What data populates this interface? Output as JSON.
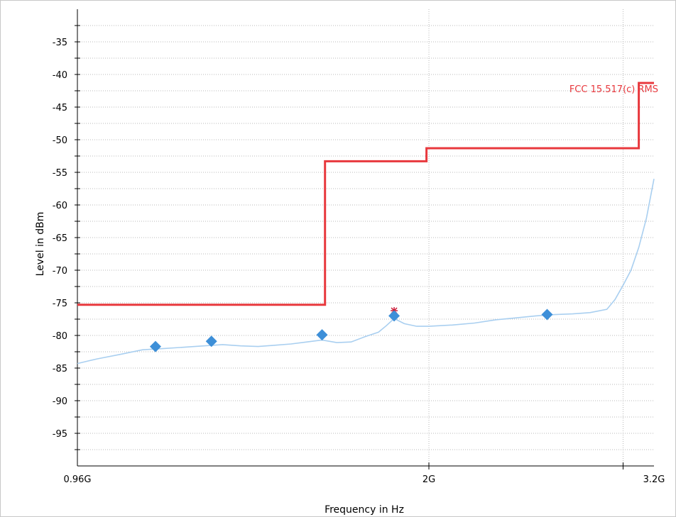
{
  "chart_data": {
    "type": "line",
    "xlabel": "Frequency in Hz",
    "ylabel": "Level in dBm",
    "x_scale": "log",
    "xlim": [
      960000000,
      3200000000
    ],
    "ylim": [
      -100,
      -30
    ],
    "grid": true,
    "x_ticks": [
      {
        "value": 960000000,
        "label": "0.96G"
      },
      {
        "value": 2000000000,
        "label": "2G"
      },
      {
        "value": 3200000000,
        "label": "3.2G"
      }
    ],
    "y_ticks": [
      {
        "value": -35,
        "label": "-35"
      },
      {
        "value": -40,
        "label": "-40"
      },
      {
        "value": -45,
        "label": "-45"
      },
      {
        "value": -50,
        "label": "-50"
      },
      {
        "value": -55,
        "label": "-55"
      },
      {
        "value": -60,
        "label": "-60"
      },
      {
        "value": -65,
        "label": "-65"
      },
      {
        "value": -70,
        "label": "-70"
      },
      {
        "value": -75,
        "label": "-75"
      },
      {
        "value": -80,
        "label": "-80"
      },
      {
        "value": -85,
        "label": "-85"
      },
      {
        "value": -90,
        "label": "-90"
      },
      {
        "value": -95,
        "label": "-95"
      }
    ],
    "series": [
      {
        "name": "FCC 15.517(c) RMS",
        "color": "#e8383d",
        "kind": "limit",
        "x": [
          960000000,
          1610000000,
          1610000000,
          1990000000,
          1990000000,
          3100000000,
          3100000000,
          3200000000
        ],
        "y": [
          -75.3,
          -75.3,
          -53.3,
          -53.3,
          -51.3,
          -51.3,
          -41.3,
          -41.3
        ]
      },
      {
        "color": "#a9cff0",
        "kind": "measurement",
        "x": [
          960000000,
          1000000000,
          1050000000,
          1100000000,
          1150000000,
          1200000000,
          1250000000,
          1300000000,
          1350000000,
          1400000000,
          1450000000,
          1500000000,
          1550000000,
          1600000000,
          1650000000,
          1700000000,
          1750000000,
          1800000000,
          1830000000,
          1860000000,
          1900000000,
          1950000000,
          2000000000,
          2100000000,
          2200000000,
          2300000000,
          2400000000,
          2500000000,
          2600000000,
          2700000000,
          2800000000,
          2900000000,
          2950000000,
          3000000000,
          3050000000,
          3100000000,
          3150000000,
          3200000000
        ],
        "y": [
          -84.3,
          -83.6,
          -82.9,
          -82.2,
          -82.0,
          -81.8,
          -81.6,
          -81.4,
          -81.6,
          -81.7,
          -81.5,
          -81.3,
          -81.0,
          -80.7,
          -81.1,
          -81.0,
          -80.2,
          -79.5,
          -78.5,
          -77.4,
          -78.2,
          -78.6,
          -78.6,
          -78.4,
          -78.1,
          -77.6,
          -77.3,
          -77.0,
          -76.8,
          -76.7,
          -76.5,
          -76.0,
          -74.5,
          -72.3,
          -70.0,
          -66.5,
          -62.0,
          -56.0
        ]
      }
    ],
    "markers": {
      "color": "#3d8fd8",
      "points": [
        {
          "x": 1130000000,
          "y": -81.7
        },
        {
          "x": 1270000000,
          "y": -80.9
        },
        {
          "x": 1600000000,
          "y": -79.9
        },
        {
          "x": 1860000000,
          "y": -77.0
        },
        {
          "x": 2560000000,
          "y": -76.8
        }
      ]
    },
    "peak_marker": {
      "x": 1860000000,
      "y": -76.2,
      "color": "#c8102e"
    }
  }
}
